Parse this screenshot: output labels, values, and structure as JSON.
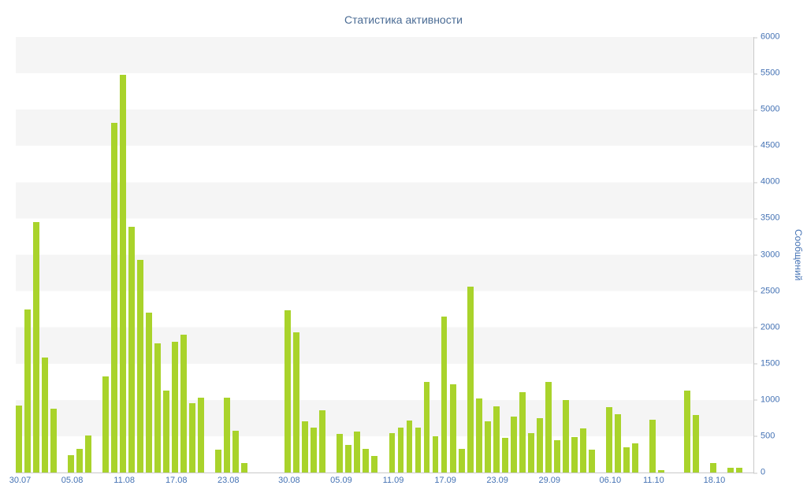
{
  "chart_data": {
    "type": "bar",
    "title": "Статистика активности",
    "xlabel": "",
    "ylabel": "Сообщений",
    "ylim": [
      0,
      6000
    ],
    "ytick_step": 500,
    "grid": "banded-rows",
    "legend": "none",
    "colors": {
      "bar": "#a9d32b",
      "band_light": "#ffffff",
      "band_dark": "#f5f5f5",
      "axis_line": "#c9c9c9",
      "axis_label": "#4472b4",
      "title": "#4a6b94"
    },
    "x_ticks": [
      {
        "index": 0,
        "label": "30.07"
      },
      {
        "index": 6,
        "label": "05.08"
      },
      {
        "index": 12,
        "label": "11.08"
      },
      {
        "index": 18,
        "label": "17.08"
      },
      {
        "index": 24,
        "label": "23.08"
      },
      {
        "index": 31,
        "label": "30.08"
      },
      {
        "index": 37,
        "label": "05.09"
      },
      {
        "index": 43,
        "label": "11.09"
      },
      {
        "index": 49,
        "label": "17.09"
      },
      {
        "index": 55,
        "label": "23.09"
      },
      {
        "index": 61,
        "label": "29.09"
      },
      {
        "index": 68,
        "label": "06.10"
      },
      {
        "index": 73,
        "label": "11.10"
      },
      {
        "index": 80,
        "label": "18.10"
      }
    ],
    "values": [
      920,
      2250,
      3450,
      1580,
      880,
      0,
      240,
      330,
      510,
      0,
      1320,
      4820,
      5480,
      3380,
      2930,
      2200,
      1780,
      1130,
      1800,
      1900,
      950,
      1030,
      0,
      310,
      1030,
      570,
      130,
      0,
      0,
      0,
      0,
      2240,
      1930,
      700,
      620,
      860,
      0,
      530,
      380,
      560,
      330,
      230,
      0,
      540,
      620,
      720,
      620,
      1250,
      500,
      2150,
      1210,
      330,
      2560,
      1020,
      710,
      910,
      480,
      770,
      1110,
      540,
      750,
      1250,
      450,
      1000,
      490,
      610,
      320,
      0,
      900,
      800,
      350,
      400,
      0,
      730,
      30,
      0,
      0,
      1130,
      790,
      0,
      130,
      0,
      60,
      70,
      0
    ]
  }
}
